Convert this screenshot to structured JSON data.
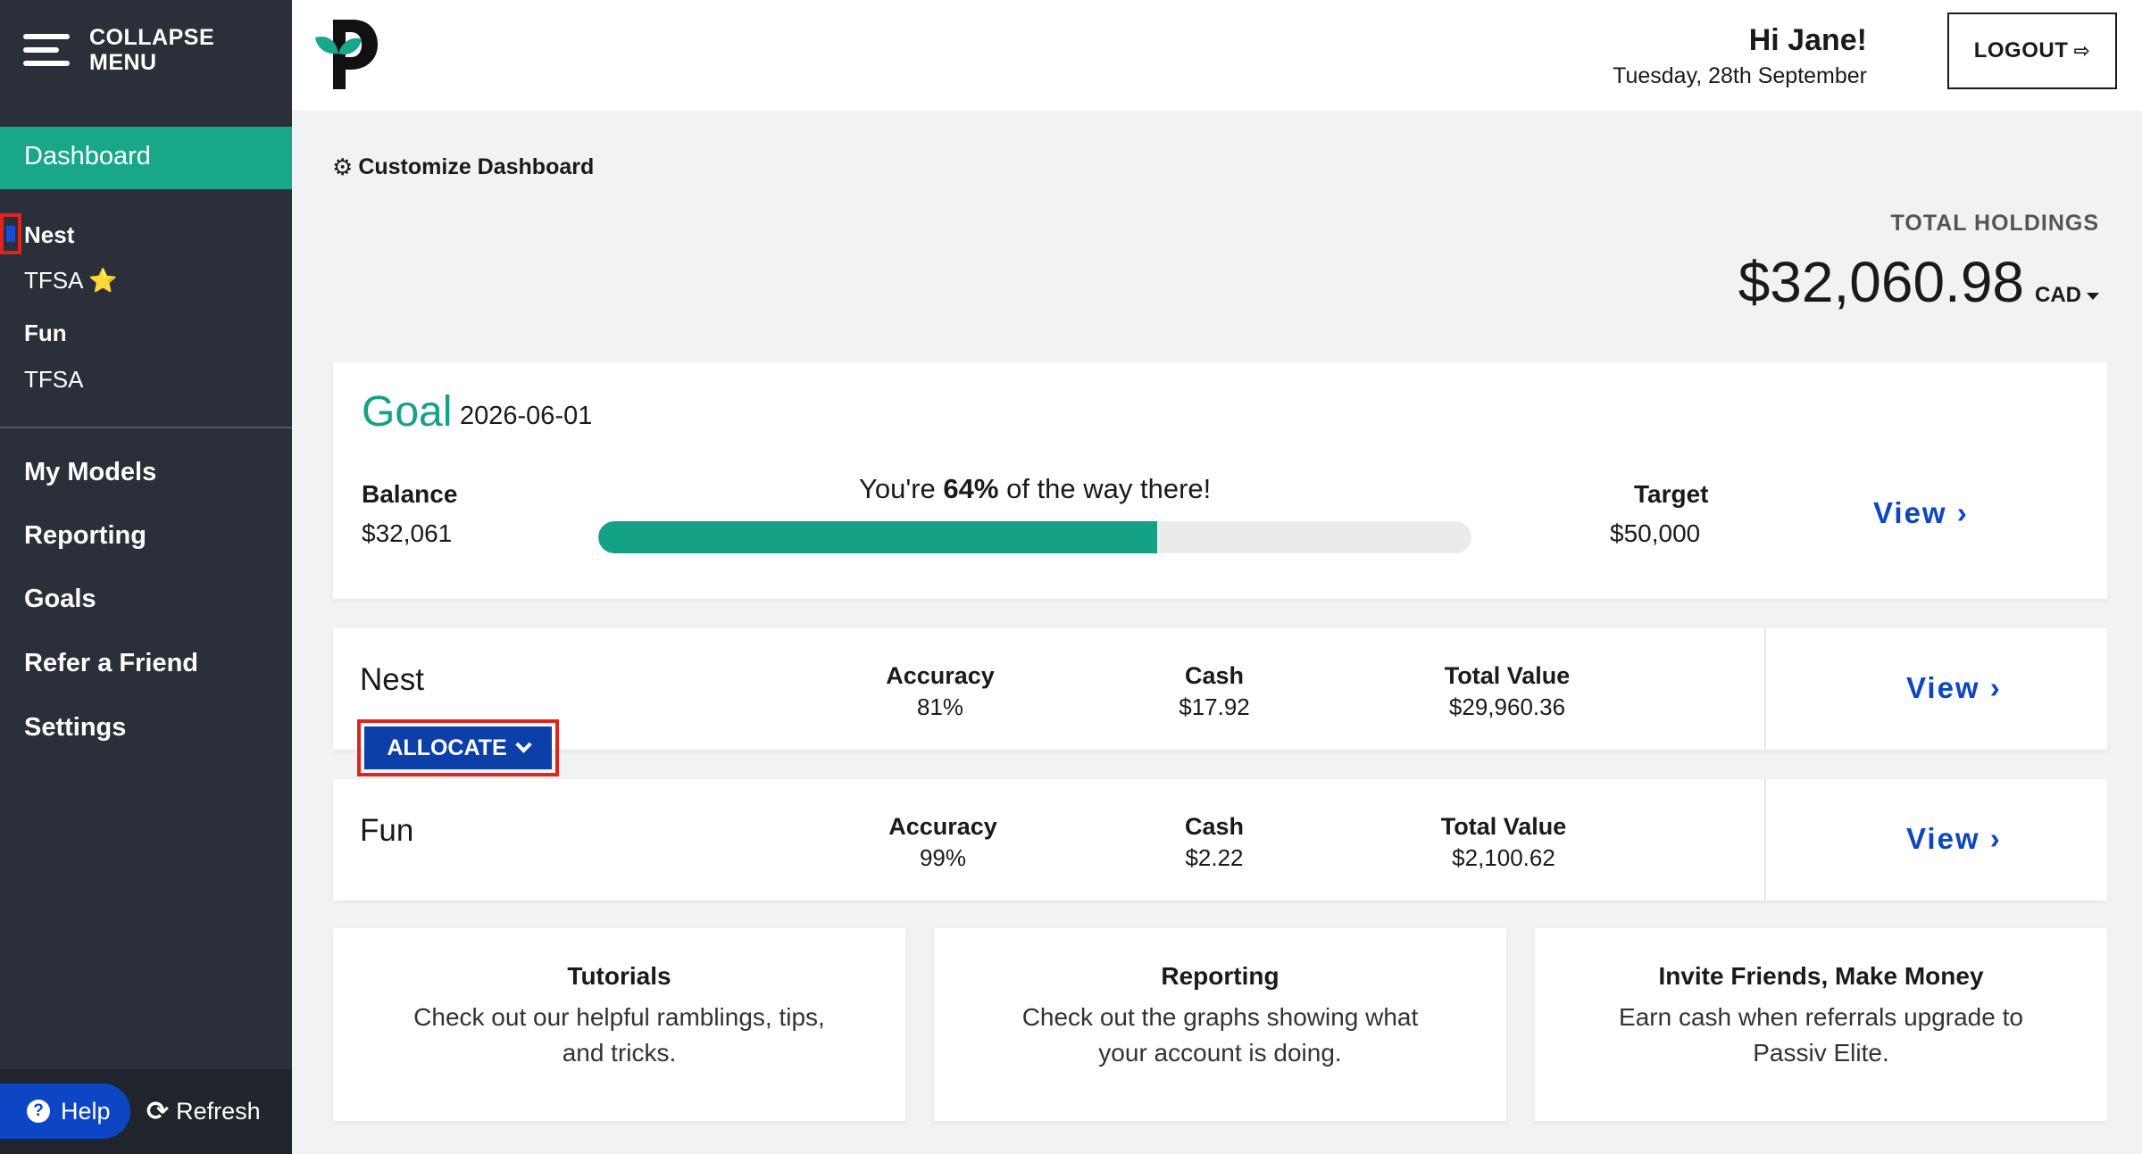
{
  "sidebar": {
    "collapse_label": "COLLAPSE\nMENU",
    "dashboard": "Dashboard",
    "accounts": [
      {
        "name": "Nest",
        "bold": true
      },
      {
        "name": "TFSA ⭐",
        "bold": false
      },
      {
        "name": "Fun",
        "bold": true
      },
      {
        "name": "TFSA",
        "bold": false
      }
    ],
    "nav": [
      "My Models",
      "Reporting",
      "Goals",
      "Refer a Friend",
      "Settings"
    ],
    "help": "Help",
    "refresh": "Refresh"
  },
  "header": {
    "greeting": "Hi Jane!",
    "date": "Tuesday, 28th September",
    "logout": "LOGOUT"
  },
  "main": {
    "customize": "Customize Dashboard",
    "total_holdings_label": "TOTAL HOLDINGS",
    "total_holdings_value": "$32,060.98",
    "currency": "CAD"
  },
  "goal": {
    "title": "Goal",
    "date": "2026-06-01",
    "balance_label": "Balance",
    "balance_value": "$32,061",
    "progress_prefix": "You're ",
    "progress_percent": "64%",
    "progress_suffix": " of the way there!",
    "progress_fraction": 0.64,
    "target_label": "Target",
    "target_value": "$50,000",
    "view": "View ›"
  },
  "accounts": [
    {
      "name": "Nest",
      "accuracy_label": "Accuracy",
      "accuracy": "81%",
      "cash_label": "Cash",
      "cash": "$17.92",
      "total_label": "Total Value",
      "total": "$29,960.36",
      "view": "View ›",
      "allocate": "ALLOCATE"
    },
    {
      "name": "Fun",
      "accuracy_label": "Accuracy",
      "accuracy": "99%",
      "cash_label": "Cash",
      "cash": "$2.22",
      "total_label": "Total Value",
      "total": "$2,100.62",
      "view": "View ›"
    }
  ],
  "info_cards": [
    {
      "title": "Tutorials",
      "desc": "Check out our helpful ramblings, tips, and tricks."
    },
    {
      "title": "Reporting",
      "desc": "Check out the graphs showing what your account is doing."
    },
    {
      "title": "Invite Friends, Make Money",
      "desc": "Earn cash when referrals upgrade to Passiv Elite."
    }
  ],
  "colors": {
    "sidebar": "#2a2f3a",
    "accent_green": "#18a889",
    "link_blue": "#0c46c5",
    "highlight_red": "#e0241b"
  },
  "icons": [
    "hamburger-icon",
    "star-icon",
    "question-icon",
    "refresh-icon",
    "logout-icon",
    "gears-icon",
    "chevron-down-icon",
    "chevron-right-icon",
    "passiv-logo"
  ]
}
